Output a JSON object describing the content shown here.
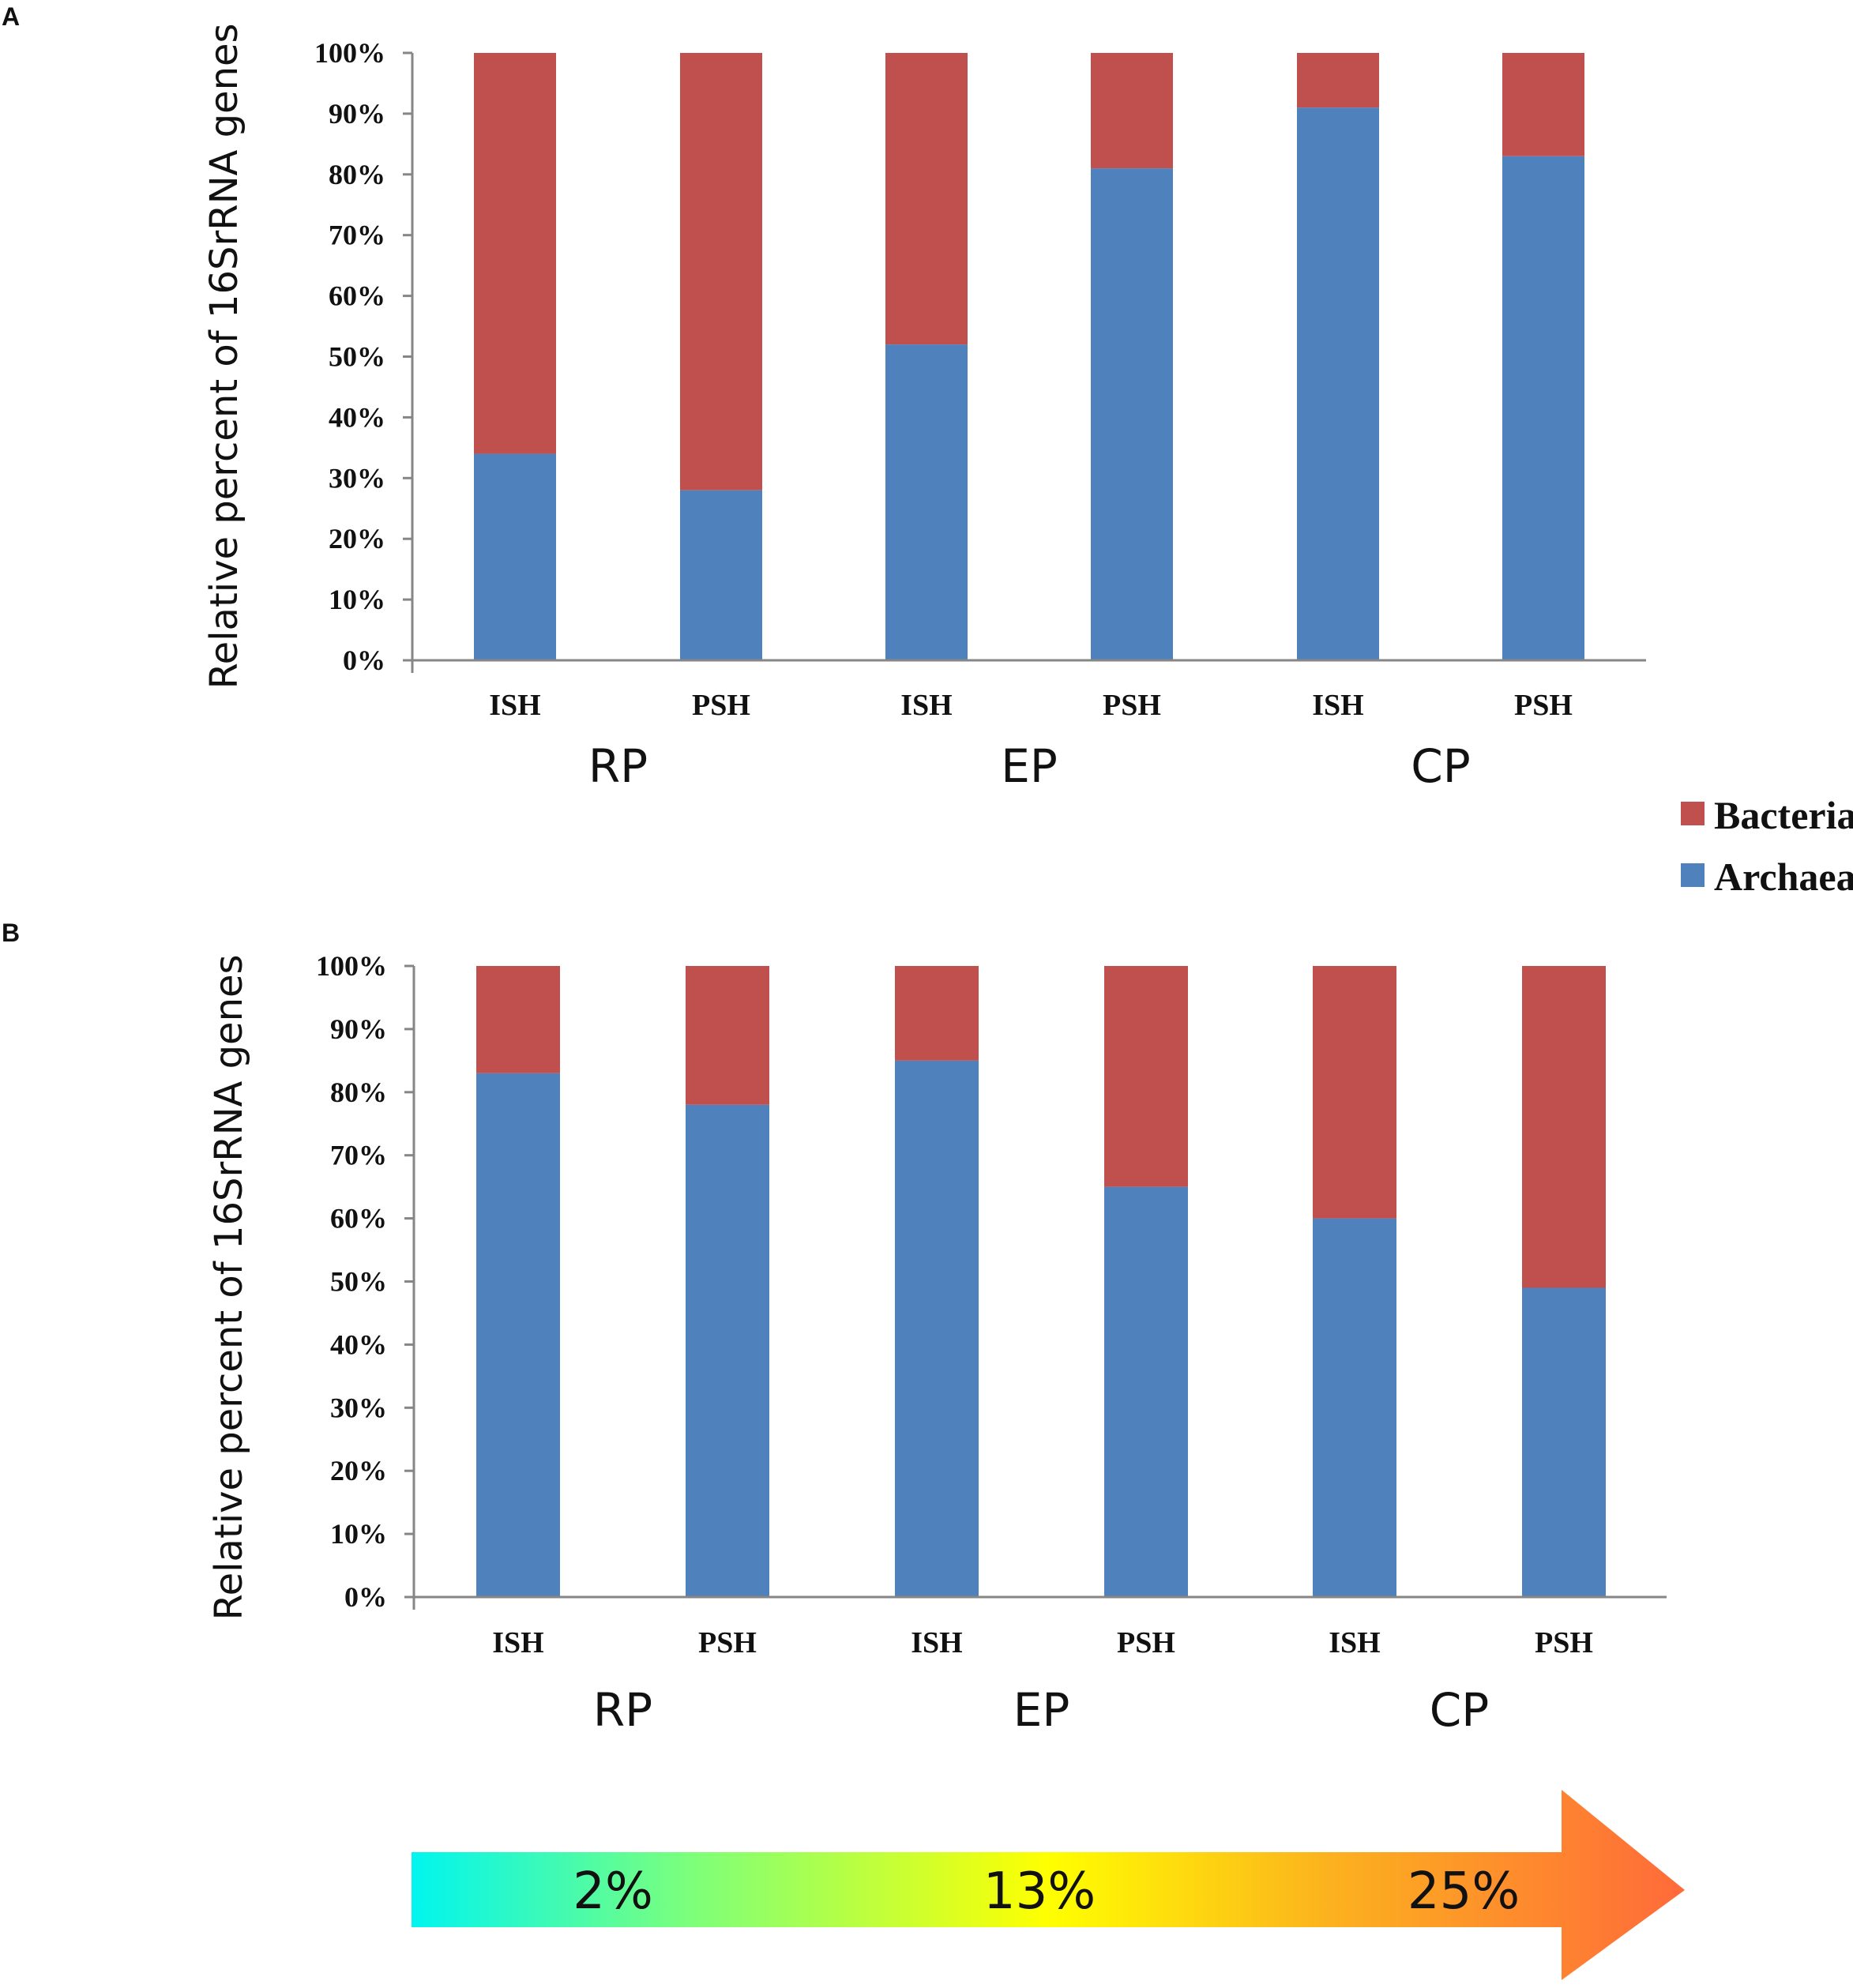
{
  "colors": {
    "archaea": "#4f81bd",
    "bacteria": "#c0504d",
    "axis": "#868686"
  },
  "legend": {
    "bacteria": "Bacteria",
    "archaea": "Archaea"
  },
  "chart_data": [
    {
      "type": "bar",
      "stacked": true,
      "panel": "A",
      "ylabel": "Relative percent of 16SrRNA genes",
      "ylim": [
        0,
        100
      ],
      "yticks": [
        "0%",
        "10%",
        "20%",
        "30%",
        "40%",
        "50%",
        "60%",
        "70%",
        "80%",
        "90%",
        "100%"
      ],
      "categories": [
        "ISH",
        "PSH",
        "ISH",
        "PSH",
        "ISH",
        "PSH"
      ],
      "groups": [
        "RP",
        "EP",
        "CP"
      ],
      "series": [
        {
          "name": "Archaea",
          "values": [
            34,
            28,
            52,
            81,
            91,
            83
          ]
        },
        {
          "name": "Bacteria",
          "values": [
            66,
            72,
            48,
            19,
            9,
            17
          ]
        }
      ],
      "legend_position": "right"
    },
    {
      "type": "bar",
      "stacked": true,
      "panel": "B",
      "ylabel": "Relative percent of 16SrRNA genes",
      "ylim": [
        0,
        100
      ],
      "yticks": [
        "0%",
        "10%",
        "20%",
        "30%",
        "40%",
        "50%",
        "60%",
        "70%",
        "80%",
        "90%",
        "100%"
      ],
      "categories": [
        "ISH",
        "PSH",
        "ISH",
        "PSH",
        "ISH",
        "PSH"
      ],
      "groups": [
        "RP",
        "EP",
        "CP"
      ],
      "series": [
        {
          "name": "Archaea",
          "values": [
            83,
            78,
            85,
            65,
            60,
            49
          ]
        },
        {
          "name": "Bacteria",
          "values": [
            17,
            22,
            15,
            35,
            40,
            51
          ]
        }
      ]
    }
  ],
  "gradient_arrow": {
    "labels": [
      "2%",
      "13%",
      "25%"
    ]
  }
}
